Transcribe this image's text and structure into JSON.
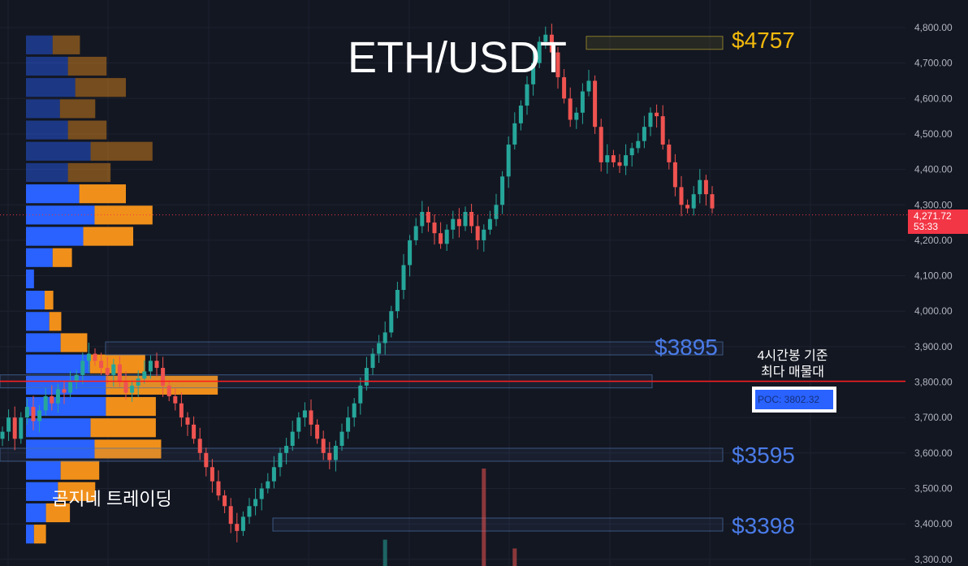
{
  "title": "ETH/USDT",
  "watermark": "곰지네 트레이딩",
  "annotation": {
    "line1": "4시간봉 기준",
    "line2": "최다 매물대"
  },
  "poc_label": "POC: 3802.32",
  "level_tags": {
    "l4757": "$4757",
    "l3895": "$3895",
    "l3595": "$3595",
    "l3398": "$3398"
  },
  "last_price": {
    "price": "4,271.72",
    "countdown": "53:33"
  },
  "colors": {
    "background": "#131722",
    "grid": "#1e2230",
    "candle_up": "#26a69a",
    "candle_down": "#ef5350",
    "vp_up": "#2962ff",
    "vp_down": "#f0901a",
    "poc_line": "#ff1a1a",
    "level_gold": "#f2b90c",
    "level_blue": "#4a7be8"
  },
  "chart_data": {
    "type": "candlestick",
    "symbol": "ETH/USDT",
    "ylim": [
      3290,
      4830
    ],
    "y_axis_ticks": [
      "4,800.00",
      "4,700.00",
      "4,600.00",
      "4,500.00",
      "4,400.00",
      "4,300.00",
      "4,200.00",
      "4,100.00",
      "4,000.00",
      "3,900.00",
      "3,800.00",
      "3,700.00",
      "3,600.00",
      "3,500.00",
      "3,400.00",
      "3,300.00"
    ],
    "y_tick_values": [
      4800,
      4700,
      4600,
      4500,
      4400,
      4300,
      4200,
      4100,
      4000,
      3900,
      3800,
      3700,
      3600,
      3500,
      3400,
      3300
    ],
    "last_price": 4271.72,
    "poc": 3802.32,
    "close_series": [
      3660,
      3700,
      3640,
      3700,
      3730,
      3690,
      3720,
      3760,
      3740,
      3780,
      3770,
      3800,
      3820,
      3860,
      3880,
      3860,
      3840,
      3820,
      3850,
      3800,
      3770,
      3790,
      3810,
      3830,
      3860,
      3840,
      3790,
      3760,
      3740,
      3700,
      3680,
      3640,
      3600,
      3560,
      3520,
      3480,
      3450,
      3400,
      3380,
      3420,
      3450,
      3470,
      3500,
      3520,
      3560,
      3600,
      3620,
      3660,
      3700,
      3720,
      3680,
      3640,
      3600,
      3580,
      3620,
      3660,
      3700,
      3740,
      3790,
      3840,
      3880,
      3910,
      3940,
      4000,
      4060,
      4130,
      4200,
      4240,
      4280,
      4250,
      4220,
      4190,
      4230,
      4260,
      4240,
      4280,
      4240,
      4200,
      4230,
      4260,
      4300,
      4380,
      4470,
      4530,
      4580,
      4640,
      4700,
      4760,
      4780,
      4730,
      4660,
      4600,
      4540,
      4560,
      4620,
      4650,
      4520,
      4420,
      4440,
      4420,
      4410,
      4440,
      4460,
      4480,
      4520,
      4560,
      4550,
      4470,
      4420,
      4350,
      4300,
      4290,
      4330,
      4370,
      4330,
      4290
    ],
    "volume_profile": [
      {
        "price": 3370,
        "buy": 12,
        "sell": 18
      },
      {
        "price": 3430,
        "buy": 30,
        "sell": 36
      },
      {
        "price": 3490,
        "buy": 48,
        "sell": 56
      },
      {
        "price": 3550,
        "buy": 52,
        "sell": 58
      },
      {
        "price": 3610,
        "buy": 103,
        "sell": 100
      },
      {
        "price": 3670,
        "buy": 97,
        "sell": 98
      },
      {
        "price": 3730,
        "buy": 120,
        "sell": 75
      },
      {
        "price": 3790,
        "buy": 120,
        "sell": 168
      },
      {
        "price": 3850,
        "buy": 96,
        "sell": 83
      },
      {
        "price": 3910,
        "buy": 52,
        "sell": 40
      },
      {
        "price": 3970,
        "buy": 35,
        "sell": 18
      },
      {
        "price": 4030,
        "buy": 28,
        "sell": 13
      },
      {
        "price": 4090,
        "buy": 12,
        "sell": 0
      },
      {
        "price": 4150,
        "buy": 40,
        "sell": 29
      },
      {
        "price": 4210,
        "buy": 86,
        "sell": 75
      },
      {
        "price": 4270,
        "buy": 103,
        "sell": 87
      },
      {
        "price": 4330,
        "buy": 80,
        "sell": 70
      },
      {
        "price": 4390,
        "buy": 63,
        "sell": 64
      },
      {
        "price": 4450,
        "buy": 97,
        "sell": 93
      },
      {
        "price": 4510,
        "buy": 63,
        "sell": 58
      },
      {
        "price": 4570,
        "buy": 51,
        "sell": 53
      },
      {
        "price": 4630,
        "buy": 74,
        "sell": 76
      },
      {
        "price": 4690,
        "buy": 63,
        "sell": 58
      },
      {
        "price": 4750,
        "buy": 40,
        "sell": 41
      }
    ],
    "volume_bars": [
      {
        "index": 62,
        "value": 0.27,
        "up": true
      },
      {
        "index": 78,
        "value": 1.0,
        "up": false
      },
      {
        "index": 83,
        "value": 0.18,
        "up": false
      }
    ],
    "levels": [
      {
        "price": 4757,
        "label": "$4757",
        "color": "gold"
      },
      {
        "price": 3895,
        "label": "$3895",
        "color": "blue"
      },
      {
        "price": 3802,
        "label": "",
        "color": "blue"
      },
      {
        "price": 3595,
        "label": "$3595",
        "color": "blue"
      },
      {
        "price": 3398,
        "label": "$3398",
        "color": "blue"
      }
    ]
  }
}
